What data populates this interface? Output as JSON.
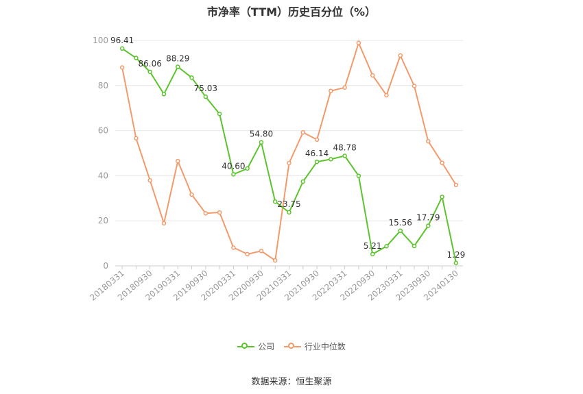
{
  "title": "市净率（TTM）历史百分位（%）",
  "source": "数据来源：恒生聚源",
  "chart_data": {
    "type": "line",
    "x": [
      "20180331",
      "20180630",
      "20180930",
      "20181231",
      "20190331",
      "20190630",
      "20190930",
      "20191231",
      "20200331",
      "20200630",
      "20200930",
      "20201231",
      "20210331",
      "20210630",
      "20210930",
      "20211231",
      "20220331",
      "20220630",
      "20220930",
      "20221231",
      "20230331",
      "20230630",
      "20230930",
      "20231231",
      "20240130"
    ],
    "x_tick_labels": [
      "20180331",
      "20180930",
      "20190331",
      "20190930",
      "20200331",
      "20200930",
      "20210331",
      "20210930",
      "20220331",
      "20220930",
      "20230331",
      "20230930",
      "20240130"
    ],
    "ylim": [
      0,
      100
    ],
    "y_ticks": [
      0,
      20,
      40,
      60,
      80,
      100
    ],
    "grid": true,
    "legend_position": "bottom",
    "series": [
      {
        "name": "公司",
        "color": "#5bc42c",
        "values": [
          96.41,
          92.2,
          86.06,
          76.2,
          88.29,
          83.5,
          75.03,
          67.4,
          40.6,
          43.2,
          54.8,
          28.5,
          23.75,
          37.4,
          46.14,
          47.3,
          48.78,
          39.9,
          5.21,
          8.7,
          15.56,
          8.8,
          17.79,
          30.6,
          1.29
        ],
        "labels": {
          "0": "96.41",
          "2": "86.06",
          "4": "88.29",
          "6": "75.03",
          "8": "40.60",
          "10": "54.80",
          "12": "23.75",
          "14": "46.14",
          "16": "48.78",
          "18": "5.21",
          "20": "15.56",
          "22": "17.79",
          "24": "1.29"
        }
      },
      {
        "name": "行业中位数",
        "color": "#f39a6b",
        "values": [
          88.0,
          56.6,
          37.9,
          18.9,
          46.5,
          31.6,
          23.3,
          23.7,
          8.1,
          5.2,
          6.6,
          2.4,
          45.6,
          59.2,
          56.0,
          77.6,
          79.1,
          98.9,
          84.5,
          75.7,
          93.3,
          79.8,
          55.3,
          45.7,
          35.9
        ],
        "labels": {}
      }
    ]
  }
}
